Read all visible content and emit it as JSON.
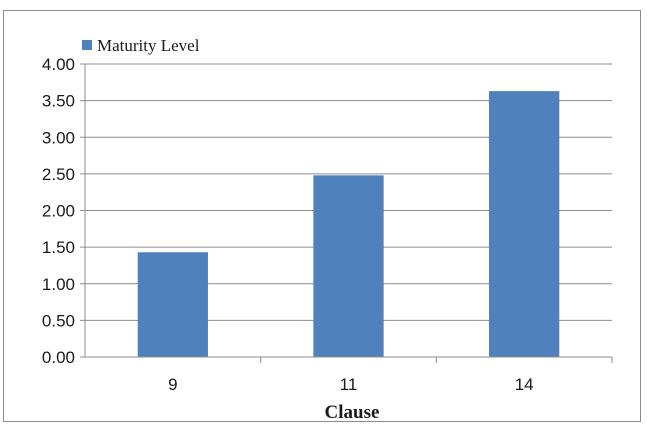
{
  "chart_data": {
    "type": "bar",
    "title": "",
    "xlabel": "Clause",
    "ylabel": "",
    "categories": [
      "9",
      "11",
      "14"
    ],
    "series": [
      {
        "name": "Maturity Level",
        "values": [
          1.43,
          2.48,
          3.63
        ],
        "color": "#4f81bd"
      }
    ],
    "ylim": [
      0,
      4
    ],
    "yticks": [
      "0.00",
      "0.50",
      "1.00",
      "1.50",
      "2.00",
      "2.50",
      "3.00",
      "3.50",
      "4.00"
    ],
    "ytick_values": [
      0,
      0.5,
      1,
      1.5,
      2,
      2.5,
      3,
      3.5,
      4
    ],
    "grid": true,
    "legend_position": "top-left"
  },
  "colors": {
    "gridline": "#8c8c8c",
    "axis": "#8c8c8c",
    "bar": "#4f81bd"
  }
}
